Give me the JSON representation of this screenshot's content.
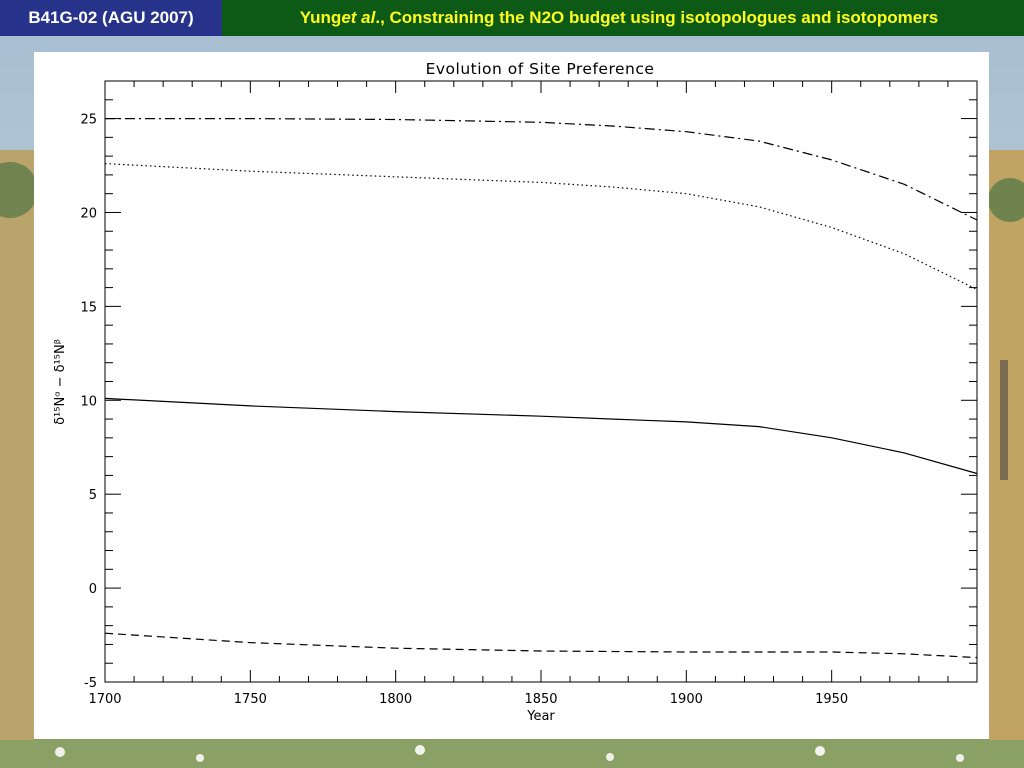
{
  "header": {
    "badge": "B41G-02 (AGU 2007)",
    "title_prefix": "Yung ",
    "title_italic": "et al",
    "title_suffix": "., Constraining the N2O budget using isotopologues and isotopomers"
  },
  "colors": {
    "badge_bg": "#27338a",
    "title_bg": "#0d5a17",
    "title_text": "#ffff1e"
  },
  "chart_data": {
    "type": "line",
    "title": "Evolution of Site Preference",
    "xlabel": "Year",
    "ylabel": "δ¹⁵Nᵅ − δ¹⁵Nᵝ",
    "xlim": [
      1700,
      2000
    ],
    "ylim": [
      -5,
      27
    ],
    "xticks": [
      1700,
      1750,
      1800,
      1850,
      1900,
      1950
    ],
    "yticks": [
      -5,
      0,
      5,
      10,
      15,
      20,
      25
    ],
    "grid": false,
    "series": [
      {
        "style": "dashdot",
        "x": [
          1700,
          1750,
          1800,
          1850,
          1875,
          1900,
          1925,
          1950,
          1975,
          2000
        ],
        "y": [
          25.0,
          25.0,
          24.95,
          24.8,
          24.6,
          24.3,
          23.8,
          22.8,
          21.5,
          19.6
        ]
      },
      {
        "style": "dotted",
        "x": [
          1700,
          1750,
          1800,
          1850,
          1875,
          1900,
          1925,
          1950,
          1975,
          2000
        ],
        "y": [
          22.6,
          22.2,
          21.9,
          21.6,
          21.35,
          21.0,
          20.3,
          19.2,
          17.8,
          15.9
        ]
      },
      {
        "style": "solid",
        "x": [
          1700,
          1750,
          1800,
          1850,
          1875,
          1900,
          1925,
          1950,
          1975,
          2000
        ],
        "y": [
          10.1,
          9.7,
          9.4,
          9.15,
          9.0,
          8.85,
          8.6,
          8.0,
          7.2,
          6.1
        ]
      },
      {
        "style": "dashed",
        "x": [
          1700,
          1750,
          1800,
          1850,
          1900,
          1950,
          1975,
          2000
        ],
        "y": [
          -2.4,
          -2.9,
          -3.2,
          -3.35,
          -3.4,
          -3.4,
          -3.5,
          -3.7
        ]
      }
    ]
  }
}
